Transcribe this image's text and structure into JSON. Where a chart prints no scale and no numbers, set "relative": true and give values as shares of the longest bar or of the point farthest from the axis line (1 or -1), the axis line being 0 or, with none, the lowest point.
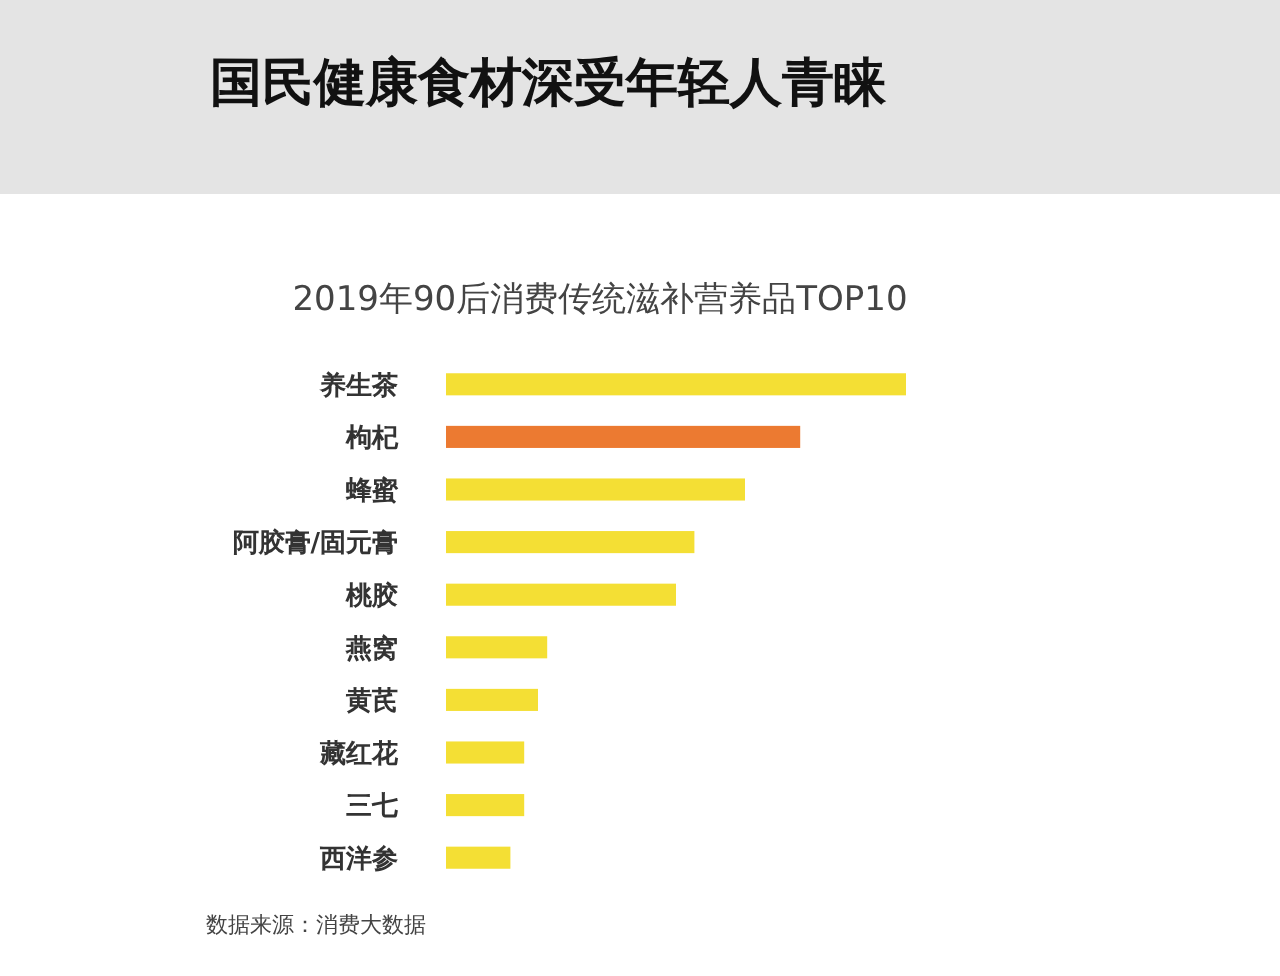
{
  "chart_data": {
    "type": "bar",
    "orientation": "horizontal",
    "relative": true,
    "title": "国民健康食材深受年轻人青睐",
    "subtitle": "2019年90后消费传统滋补营养品TOP10",
    "categories": [
      "养生茶",
      "枸杞",
      "蜂蜜",
      "阿胶膏/固元膏",
      "桃胶",
      "燕窝",
      "黄芪",
      "藏红花",
      "三七",
      "西洋参"
    ],
    "values": [
      1,
      0.77,
      0.65,
      0.54,
      0.5,
      0.22,
      0.2,
      0.17,
      0.17,
      0.14
    ],
    "colors": [
      "#f4df34",
      "#ec7a31",
      "#f4df34",
      "#f4df34",
      "#f4df34",
      "#f4df34",
      "#f4df34",
      "#f4df34",
      "#f4df34",
      "#f4df34"
    ],
    "annotations": [
      "数据来源：消费大数据"
    ]
  }
}
